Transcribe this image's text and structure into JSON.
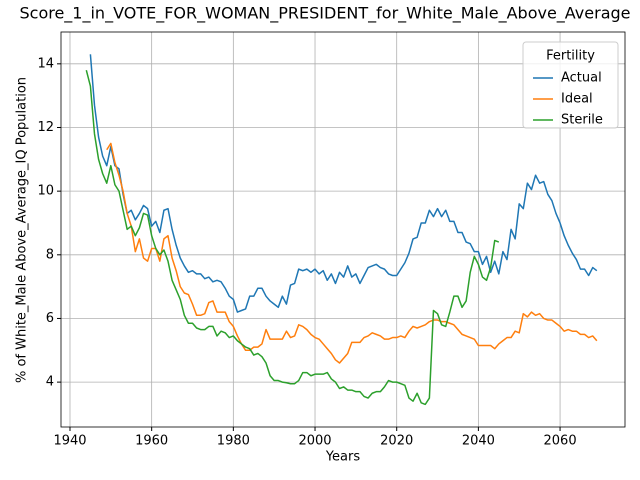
{
  "chart_data": {
    "type": "line",
    "title": "Score_1_in_VOTE_FOR_WOMAN_PRESIDENT_for_White_Male_Above_Average",
    "x_label": "Years",
    "y_label": "% of White_Male Above_Average_IQ Population",
    "legend_title": "Fertility",
    "legend_position": "upper right",
    "grid": true,
    "xlim": [
      1937.8,
      2075.9
    ],
    "ylim": [
      2.59,
      15.0
    ],
    "xticks": [
      1940,
      1960,
      1980,
      2000,
      2020,
      2040,
      2060
    ],
    "yticks": [
      4,
      6,
      8,
      10,
      12,
      14
    ],
    "x": [
      1944,
      1945,
      1946,
      1947,
      1948,
      1949,
      1950,
      1951,
      1952,
      1953,
      1954,
      1955,
      1956,
      1957,
      1958,
      1959,
      1960,
      1961,
      1962,
      1963,
      1964,
      1965,
      1966,
      1967,
      1968,
      1969,
      1970,
      1971,
      1972,
      1973,
      1974,
      1975,
      1976,
      1977,
      1978,
      1979,
      1980,
      1981,
      1982,
      1983,
      1984,
      1985,
      1986,
      1987,
      1988,
      1989,
      1990,
      1991,
      1992,
      1993,
      1994,
      1995,
      1996,
      1997,
      1998,
      1999,
      2000,
      2001,
      2002,
      2003,
      2004,
      2005,
      2006,
      2007,
      2008,
      2009,
      2010,
      2011,
      2012,
      2013,
      2014,
      2015,
      2016,
      2017,
      2018,
      2019,
      2020,
      2021,
      2022,
      2023,
      2024,
      2025,
      2026,
      2027,
      2028,
      2029,
      2030,
      2031,
      2032,
      2033,
      2034,
      2035,
      2036,
      2037,
      2038,
      2039,
      2040,
      2041,
      2042,
      2043,
      2044,
      2045,
      2046,
      2047,
      2048,
      2049,
      2050,
      2051,
      2052,
      2053,
      2054,
      2055,
      2056,
      2057,
      2058,
      2059,
      2060,
      2061,
      2062,
      2063,
      2064,
      2065,
      2066,
      2067,
      2068,
      2069
    ],
    "series": [
      {
        "name": "Actual",
        "color": "#1f77b4",
        "values": [
          null,
          14.3,
          12.7,
          11.7,
          11.1,
          10.8,
          11.4,
          10.8,
          10.7,
          9.9,
          9.3,
          9.4,
          9.1,
          9.3,
          9.55,
          9.45,
          8.9,
          9.05,
          8.7,
          9.4,
          9.45,
          8.8,
          8.3,
          7.9,
          7.65,
          7.45,
          7.5,
          7.4,
          7.4,
          7.25,
          7.3,
          7.15,
          7.2,
          7.15,
          6.95,
          6.7,
          6.6,
          6.2,
          6.25,
          6.3,
          6.7,
          6.7,
          6.95,
          6.95,
          6.7,
          6.55,
          6.45,
          6.35,
          6.7,
          6.45,
          7.05,
          7.1,
          7.55,
          7.5,
          7.55,
          7.45,
          7.55,
          7.4,
          7.5,
          7.2,
          7.4,
          7.1,
          7.45,
          7.3,
          7.65,
          7.3,
          7.4,
          7.1,
          7.35,
          7.6,
          7.65,
          7.7,
          7.6,
          7.55,
          7.4,
          7.35,
          7.35,
          7.55,
          7.75,
          8.05,
          8.5,
          8.55,
          9.0,
          9.0,
          9.4,
          9.2,
          9.45,
          9.2,
          9.4,
          9.05,
          9.05,
          8.7,
          8.7,
          8.4,
          8.35,
          8.1,
          8.1,
          7.7,
          7.95,
          7.45,
          7.8,
          7.4,
          8.1,
          7.85,
          8.8,
          8.5,
          9.6,
          9.45,
          10.25,
          10.05,
          10.5,
          10.25,
          10.3,
          9.9,
          9.7,
          9.3,
          9.0,
          8.6,
          8.3,
          8.05,
          7.85,
          7.55,
          7.55,
          7.35,
          7.6,
          7.5
        ]
      },
      {
        "name": "Ideal",
        "color": "#ff7f0e",
        "values": [
          null,
          null,
          null,
          null,
          null,
          11.3,
          11.5,
          10.9,
          10.5,
          10.0,
          9.3,
          8.9,
          8.1,
          8.5,
          7.9,
          7.8,
          8.2,
          8.2,
          7.8,
          8.5,
          8.6,
          7.9,
          7.5,
          7.0,
          6.8,
          6.75,
          6.45,
          6.1,
          6.1,
          6.15,
          6.5,
          6.55,
          6.2,
          6.2,
          6.2,
          5.9,
          5.75,
          5.45,
          5.2,
          5.0,
          5.0,
          5.1,
          5.1,
          5.2,
          5.65,
          5.35,
          5.35,
          5.35,
          5.35,
          5.6,
          5.4,
          5.45,
          5.8,
          5.75,
          5.65,
          5.5,
          5.4,
          5.35,
          5.2,
          5.05,
          4.9,
          4.7,
          4.6,
          4.75,
          4.9,
          5.25,
          5.25,
          5.25,
          5.4,
          5.45,
          5.55,
          5.5,
          5.45,
          5.35,
          5.35,
          5.4,
          5.4,
          5.45,
          5.4,
          5.6,
          5.75,
          5.7,
          5.75,
          5.8,
          5.9,
          5.95,
          5.95,
          5.9,
          5.9,
          5.85,
          5.8,
          5.65,
          5.5,
          5.45,
          5.4,
          5.35,
          5.15,
          5.15,
          5.15,
          5.15,
          5.05,
          5.2,
          5.3,
          5.4,
          5.4,
          5.6,
          5.55,
          6.15,
          6.05,
          6.2,
          6.1,
          6.15,
          6.0,
          5.95,
          5.95,
          5.85,
          5.75,
          5.6,
          5.65,
          5.6,
          5.6,
          5.5,
          5.5,
          5.4,
          5.45,
          5.3
        ]
      },
      {
        "name": "Sterile",
        "color": "#2ca02c",
        "values": [
          13.8,
          13.3,
          11.8,
          11.0,
          10.55,
          10.25,
          10.8,
          10.2,
          10.0,
          9.4,
          8.8,
          8.9,
          8.6,
          8.85,
          9.3,
          9.25,
          8.6,
          8.2,
          8.0,
          8.15,
          7.8,
          7.2,
          6.9,
          6.6,
          6.1,
          5.85,
          5.85,
          5.7,
          5.65,
          5.65,
          5.75,
          5.75,
          5.45,
          5.6,
          5.55,
          5.4,
          5.45,
          5.3,
          5.2,
          5.1,
          5.05,
          4.85,
          4.9,
          4.8,
          4.6,
          4.2,
          4.05,
          4.05,
          4.0,
          3.98,
          3.95,
          3.95,
          4.05,
          4.3,
          4.3,
          4.2,
          4.25,
          4.25,
          4.25,
          4.3,
          4.1,
          4.0,
          3.8,
          3.85,
          3.75,
          3.75,
          3.7,
          3.7,
          3.55,
          3.5,
          3.65,
          3.7,
          3.7,
          3.85,
          4.05,
          4.0,
          4.0,
          3.95,
          3.9,
          3.5,
          3.4,
          3.65,
          3.35,
          3.3,
          3.5,
          6.25,
          6.15,
          5.8,
          5.75,
          6.2,
          6.7,
          6.7,
          6.35,
          6.55,
          7.45,
          7.95,
          7.7,
          7.3,
          7.2,
          7.6,
          8.45,
          8.4,
          null,
          null,
          null,
          null,
          null,
          null,
          null,
          null,
          null,
          null,
          null,
          null,
          null,
          null,
          null,
          null,
          null,
          null,
          null,
          null,
          null,
          null,
          null,
          null
        ]
      }
    ]
  }
}
